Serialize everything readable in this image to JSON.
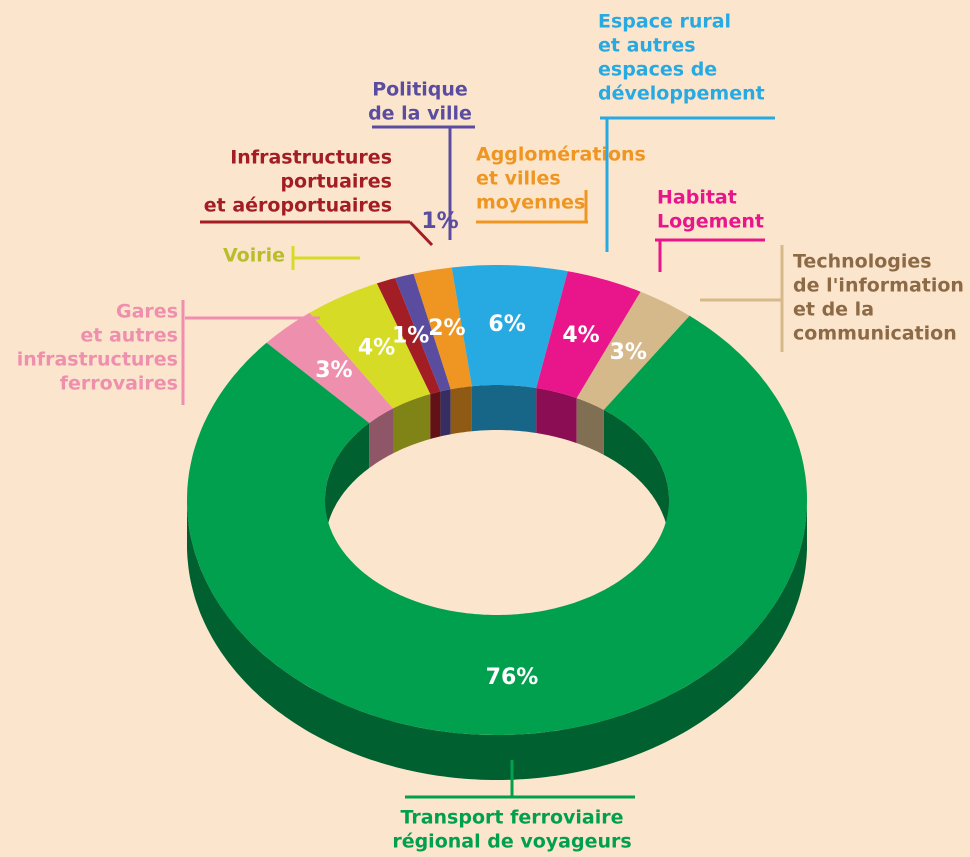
{
  "chart_data": {
    "type": "donut3d",
    "categories": [
      [
        "Gares",
        "et autres",
        "infrastructures",
        "ferrovaires"
      ],
      [
        "Voirie"
      ],
      [
        "Infrastructures",
        "portuaires",
        "et aéroportuaires"
      ],
      [
        "Politique",
        "de la ville"
      ],
      [
        "Agglomérations",
        "et villes",
        "moyennes"
      ],
      [
        "Espace rural",
        "et autres",
        "espaces de",
        "développement"
      ],
      [
        "Habitat",
        "Logement"
      ],
      [
        "Technologies",
        "de l'information",
        "et de la",
        "communication"
      ],
      [
        "Transport ferroviaire",
        "régional de voyageurs"
      ]
    ],
    "values": [
      3,
      4,
      1,
      1,
      2,
      6,
      4,
      3,
      76
    ],
    "value_labels": [
      "3%",
      "4%",
      "1%",
      "1%",
      "2%",
      "6%",
      "4%",
      "3%",
      "76%"
    ],
    "colors": [
      "#ef8fae",
      "#d6dc26",
      "#a31d24",
      "#5a4da0",
      "#ef9622",
      "#27a9e1",
      "#e8168a",
      "#d6b98b",
      "#00a04e"
    ]
  }
}
